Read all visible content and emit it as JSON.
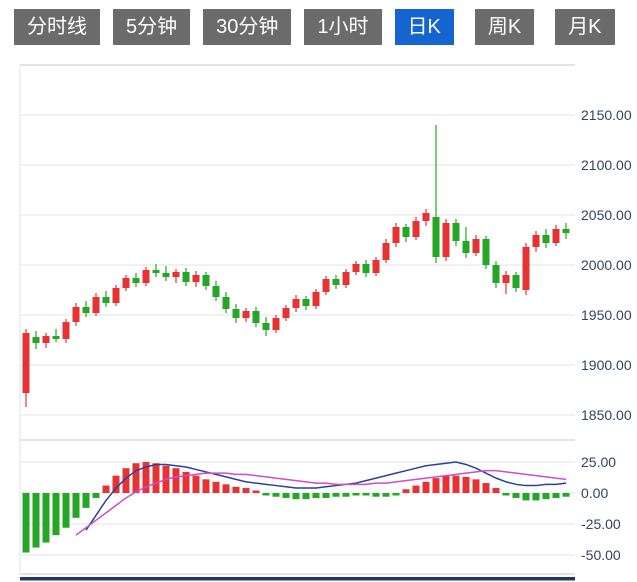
{
  "tabs": {
    "active_index": 4,
    "items": [
      {
        "label": "分时线"
      },
      {
        "label": "5分钟"
      },
      {
        "label": "30分钟"
      },
      {
        "label": "1小时"
      },
      {
        "label": "日K"
      },
      {
        "label": "周K"
      },
      {
        "label": "月K"
      }
    ]
  },
  "colors": {
    "up": "#e53333",
    "down": "#26a626",
    "dif_line": "#2b3f9e",
    "dea_line": "#cc4ecb",
    "grid": "#e3e3e3",
    "boundary": "#c8c8c8",
    "axis_text": "#31455e",
    "tab_bg": "#6b6b6b",
    "tab_active_bg": "#1565d1",
    "bottom_bar": "#203864"
  },
  "chart_data": {
    "type": "candlestick+macd",
    "title": "日K",
    "legend_position": "none",
    "grid": true,
    "price_axis": {
      "labels": [
        "2150.00",
        "2100.00",
        "2050.00",
        "2000.00",
        "1950.00",
        "1900.00",
        "1850.00"
      ],
      "values": [
        2150,
        2100,
        2050,
        2000,
        1950,
        1900,
        1850
      ],
      "range": [
        1835,
        2200
      ]
    },
    "macd_axis": {
      "labels": [
        "25.00",
        "0.00",
        "-25.00",
        "-50.00"
      ],
      "values": [
        25,
        0,
        -25,
        -50
      ],
      "range": [
        -66,
        43
      ]
    },
    "candles": [
      [
        1872,
        1936,
        1858,
        1932
      ],
      [
        1928,
        1934,
        1916,
        1922
      ],
      [
        1922,
        1932,
        1917,
        1929
      ],
      [
        1929,
        1936,
        1923,
        1926
      ],
      [
        1926,
        1946,
        1922,
        1943
      ],
      [
        1943,
        1962,
        1939,
        1958
      ],
      [
        1958,
        1964,
        1948,
        1952
      ],
      [
        1952,
        1972,
        1949,
        1968
      ],
      [
        1968,
        1974,
        1958,
        1962
      ],
      [
        1962,
        1980,
        1959,
        1977
      ],
      [
        1977,
        1990,
        1974,
        1987
      ],
      [
        1987,
        1992,
        1978,
        1982
      ],
      [
        1982,
        1998,
        1979,
        1995
      ],
      [
        1995,
        2001,
        1988,
        1992
      ],
      [
        1992,
        1999,
        1984,
        1988
      ],
      [
        1988,
        1996,
        1982,
        1993
      ],
      [
        1993,
        1997,
        1979,
        1983
      ],
      [
        1983,
        1994,
        1978,
        1990
      ],
      [
        1990,
        1993,
        1975,
        1979
      ],
      [
        1979,
        1984,
        1964,
        1968
      ],
      [
        1968,
        1973,
        1952,
        1956
      ],
      [
        1956,
        1961,
        1942,
        1947
      ],
      [
        1947,
        1957,
        1943,
        1954
      ],
      [
        1954,
        1958,
        1938,
        1942
      ],
      [
        1942,
        1948,
        1929,
        1935
      ],
      [
        1935,
        1950,
        1932,
        1947
      ],
      [
        1947,
        1960,
        1944,
        1957
      ],
      [
        1957,
        1970,
        1953,
        1966
      ],
      [
        1966,
        1969,
        1955,
        1959
      ],
      [
        1959,
        1976,
        1956,
        1973
      ],
      [
        1973,
        1989,
        1970,
        1986
      ],
      [
        1986,
        1990,
        1976,
        1980
      ],
      [
        1980,
        1996,
        1977,
        1993
      ],
      [
        1993,
        2004,
        1990,
        2001
      ],
      [
        2001,
        2005,
        1988,
        1992
      ],
      [
        1992,
        2008,
        1989,
        2005
      ],
      [
        2005,
        2026,
        2002,
        2022
      ],
      [
        2022,
        2042,
        2018,
        2038
      ],
      [
        2038,
        2041,
        2023,
        2028
      ],
      [
        2028,
        2048,
        2025,
        2044
      ],
      [
        2044,
        2056,
        2039,
        2052
      ],
      [
        2048,
        2140,
        2002,
        2008
      ],
      [
        2008,
        2046,
        2004,
        2042
      ],
      [
        2042,
        2046,
        2019,
        2024
      ],
      [
        2024,
        2038,
        2007,
        2012
      ],
      [
        2012,
        2030,
        2009,
        2026
      ],
      [
        2026,
        2029,
        1996,
        2000
      ],
      [
        2000,
        2004,
        1977,
        1982
      ],
      [
        1982,
        1994,
        1971,
        1990
      ],
      [
        1990,
        1993,
        1973,
        1977
      ],
      [
        1975,
        2022,
        1970,
        2018
      ],
      [
        2018,
        2034,
        2013,
        2030
      ],
      [
        2030,
        2036,
        2017,
        2022
      ],
      [
        2022,
        2040,
        2019,
        2036
      ],
      [
        2036,
        2042,
        2026,
        2032
      ]
    ],
    "macd": {
      "histogram": [
        -48,
        -44,
        -40,
        -34,
        -28,
        -20,
        -12,
        -4,
        6,
        14,
        20,
        24,
        25,
        24,
        22,
        20,
        17,
        14,
        11,
        9,
        7,
        5,
        4,
        2,
        -2,
        -3,
        -4,
        -5,
        -5,
        -4,
        -4,
        -3,
        -3,
        -2,
        -2,
        -3,
        -3,
        -2,
        3,
        6,
        9,
        12,
        14,
        14,
        13,
        11,
        8,
        4,
        -2,
        -4,
        -6,
        -6,
        -5,
        -4,
        -3
      ],
      "dif": [
        null,
        null,
        null,
        null,
        null,
        null,
        -30,
        -18,
        -6,
        4,
        12,
        18,
        21,
        23,
        23,
        22,
        21,
        19,
        17,
        15,
        13,
        11,
        9,
        8,
        7,
        6,
        5,
        4,
        4,
        4,
        5,
        6,
        7,
        8,
        10,
        12,
        14,
        16,
        18,
        20,
        22,
        23,
        24,
        25,
        23,
        20,
        16,
        12,
        9,
        7,
        6,
        6,
        7,
        7,
        8
      ],
      "dea": [
        null,
        null,
        null,
        null,
        null,
        -34,
        -28,
        -22,
        -16,
        -10,
        -4,
        1,
        5,
        8,
        11,
        13,
        14,
        15,
        16,
        16,
        16,
        15,
        15,
        14,
        13,
        12,
        11,
        10,
        9,
        8,
        8,
        7,
        7,
        7,
        7,
        8,
        8,
        9,
        10,
        11,
        12,
        13,
        14,
        15,
        16,
        17,
        18,
        18,
        17,
        16,
        15,
        14,
        13,
        12,
        11
      ]
    }
  }
}
